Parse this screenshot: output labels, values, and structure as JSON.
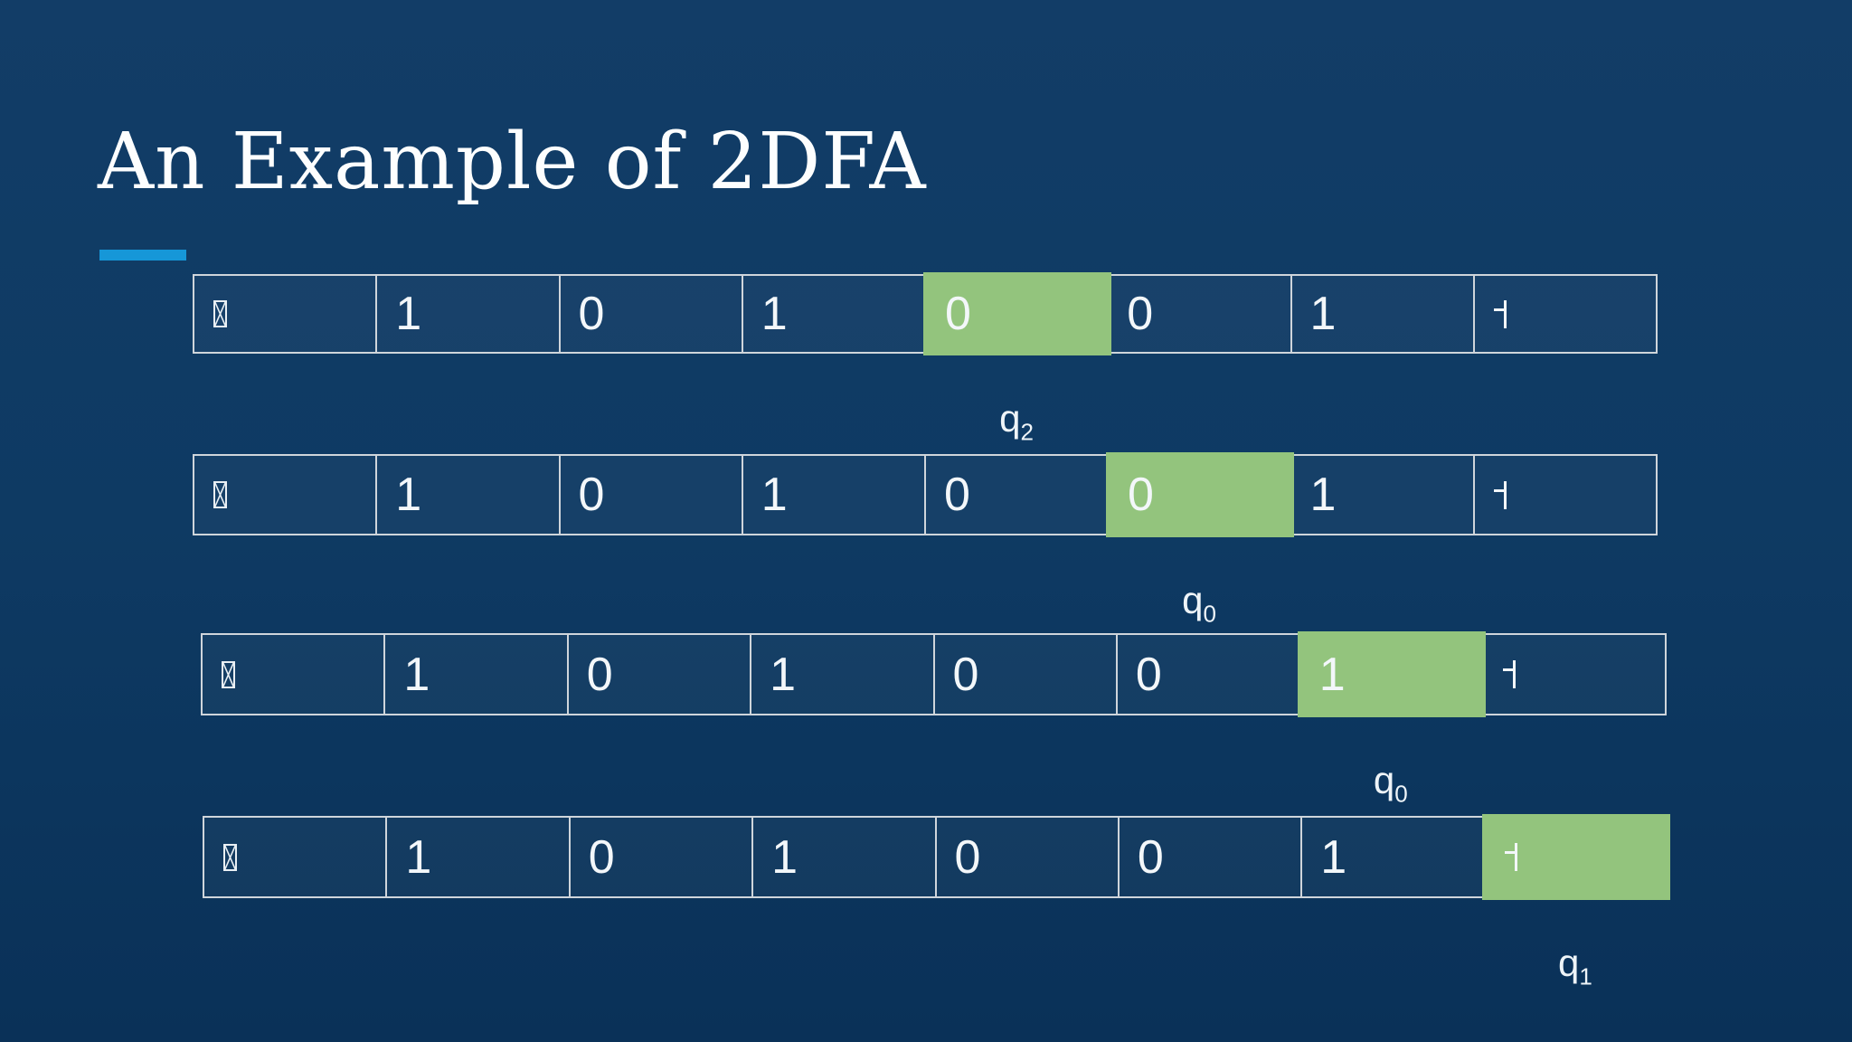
{
  "slide": {
    "title": "An Example of 2DFA"
  },
  "colors": {
    "background": "#0e3a63",
    "accent_bar": "#1697d8",
    "head_highlight": "#93c47d",
    "cell_border": "#cfd5db",
    "text": "#ffffff"
  },
  "symbols": {
    "notdef": "missing-glyph-box",
    "right_endmarker": "⊣"
  },
  "tapes": [
    {
      "cells": [
        "notdef",
        "1",
        "0",
        "1",
        "0",
        "0",
        "1",
        "⊣"
      ],
      "head_index": 4,
      "state_base": "q",
      "state_sub": "2"
    },
    {
      "cells": [
        "notdef",
        "1",
        "0",
        "1",
        "0",
        "0",
        "1",
        "⊣"
      ],
      "head_index": 5,
      "state_base": "q",
      "state_sub": "0"
    },
    {
      "cells": [
        "notdef",
        "1",
        "0",
        "1",
        "0",
        "0",
        "1",
        "⊣"
      ],
      "head_index": 6,
      "state_base": "q",
      "state_sub": "0"
    },
    {
      "cells": [
        "notdef",
        "1",
        "0",
        "1",
        "0",
        "0",
        "1",
        "⊣"
      ],
      "head_index": 7,
      "state_base": "q",
      "state_sub": "1"
    }
  ]
}
